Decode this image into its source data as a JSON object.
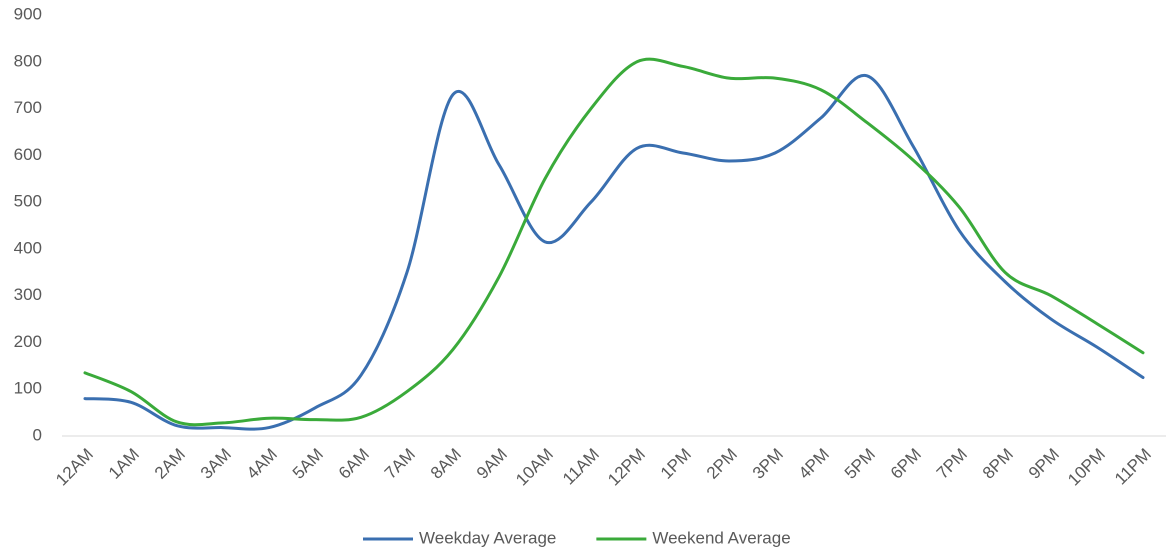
{
  "chart_data": {
    "type": "line",
    "categories": [
      "12AM",
      "1AM",
      "2AM",
      "3AM",
      "4AM",
      "5AM",
      "6AM",
      "7AM",
      "8AM",
      "9AM",
      "10AM",
      "11AM",
      "12PM",
      "1PM",
      "2PM",
      "3PM",
      "4PM",
      "5PM",
      "6PM",
      "7PM",
      "8PM",
      "9PM",
      "10PM",
      "11PM"
    ],
    "series": [
      {
        "name": "Weekday Average",
        "color": "#3a6fb0",
        "values": [
          80,
          72,
          22,
          18,
          18,
          60,
          130,
          350,
          730,
          580,
          415,
          500,
          615,
          605,
          588,
          605,
          680,
          770,
          620,
          440,
          330,
          250,
          190,
          125
        ]
      },
      {
        "name": "Weekend Average",
        "color": "#3aaa3a",
        "values": [
          135,
          95,
          30,
          28,
          38,
          35,
          40,
          95,
          185,
          340,
          550,
          700,
          800,
          790,
          765,
          765,
          740,
          670,
          590,
          490,
          350,
          300,
          240,
          178
        ]
      }
    ],
    "ylim": [
      0,
      900
    ],
    "yticks": [
      0,
      100,
      200,
      300,
      400,
      500,
      600,
      700,
      800,
      900
    ],
    "grid": false,
    "smooth": true,
    "legend": "bottom"
  }
}
